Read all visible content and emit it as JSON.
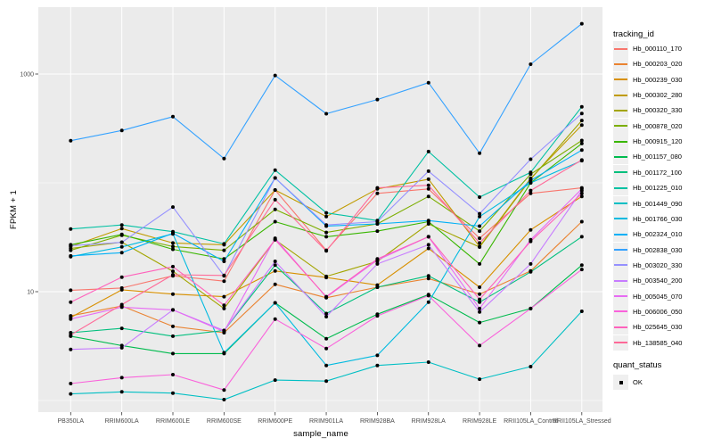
{
  "figure": {
    "y_axis_title": "FPKM + 1",
    "x_axis_title": "sample_name",
    "y_tick_labels": [
      "1000",
      "10"
    ],
    "panel_background": "#EBEBEB",
    "gridline_color": "#FFFFFF",
    "tick_color": "#333333",
    "tick_label_color": "#4D4D4D",
    "point_color": "#000000"
  },
  "legend": {
    "tracking_title": "tracking_id",
    "quant_title": "quant_status",
    "quant_ok_label": "OK"
  },
  "chart_data": {
    "type": "line",
    "title": "",
    "xlabel": "sample_name",
    "ylabel": "FPKM + 1",
    "y_scale": "log10",
    "y_major_gridlines": [
      10,
      1000
    ],
    "y_minor_gridlines": [
      1,
      100
    ],
    "ylim": [
      0.8,
      4100
    ],
    "grid": true,
    "legend_position": "right",
    "legend_title": "tracking_id",
    "quant_status": {
      "title": "quant_status",
      "items": [
        "OK"
      ],
      "marker": "black-point"
    },
    "categories": [
      "PB350LA",
      "RRIM600LA",
      "RRIM600LE",
      "RRIM600SE",
      "RRIM600PE",
      "RRIM901LA",
      "RRIM928BA",
      "RRIM928LA",
      "RRIM928LE",
      "RRII105LA_Control",
      "RRII105LA_Stressed"
    ],
    "series": [
      {
        "name": "Hb_000110_170",
        "color": "#F8766D",
        "values": [
          10.3,
          10.8,
          14,
          12.5,
          86,
          24,
          80,
          88,
          31,
          80,
          90
        ]
      },
      {
        "name": "Hb_000203_020",
        "color": "#EA8331",
        "values": [
          6.0,
          7.4,
          4.8,
          4.2,
          11.7,
          8.8,
          11,
          13.2,
          9.5,
          15.5,
          44
        ]
      },
      {
        "name": "Hb_000239_030",
        "color": "#D89000",
        "values": [
          5.8,
          10.4,
          9.5,
          9.0,
          15.5,
          13.5,
          11.5,
          25,
          11,
          37,
          75
        ]
      },
      {
        "name": "Hb_000302_280",
        "color": "#C09B00",
        "values": [
          26,
          38,
          28,
          27,
          86,
          49,
          88,
          108,
          26,
          110,
          340
        ]
      },
      {
        "name": "Hb_000320_330",
        "color": "#A3A500",
        "values": [
          25,
          28.5,
          15.4,
          7.0,
          30,
          13.8,
          19,
          42,
          25.7,
          108,
          374
        ]
      },
      {
        "name": "Hb_000878_020",
        "color": "#7CAE00",
        "values": [
          24,
          33,
          26,
          24,
          57,
          35,
          42,
          75,
          36,
          120,
          245
        ]
      },
      {
        "name": "Hb_000915_120",
        "color": "#39B600",
        "values": [
          27,
          33.6,
          24.5,
          20,
          44,
          32,
          36,
          44,
          18,
          100,
          230
        ]
      },
      {
        "name": "Hb_001157_080",
        "color": "#00BB4E",
        "values": [
          3.9,
          3.2,
          2.7,
          2.7,
          7.9,
          3.7,
          6.2,
          9.4,
          5.2,
          7.0,
          17.5
        ]
      },
      {
        "name": "Hb_001172_100",
        "color": "#00BF7D",
        "values": [
          4.2,
          4.6,
          3.9,
          4.4,
          17.5,
          6.3,
          11,
          14,
          8.0,
          15.2,
          32
        ]
      },
      {
        "name": "Hb_001225_010",
        "color": "#00C1A3",
        "values": [
          37.7,
          41,
          35.6,
          27.5,
          131,
          53,
          45,
          194,
          74,
          125,
          500
        ]
      },
      {
        "name": "Hb_001449_090",
        "color": "#00BFC4",
        "values": [
          1.15,
          1.2,
          1.17,
          1.02,
          1.54,
          1.51,
          2.1,
          2.25,
          1.57,
          2.05,
          6.6
        ]
      },
      {
        "name": "Hb_001766_030",
        "color": "#00BAE0",
        "values": [
          21,
          25.8,
          34,
          2.75,
          7.9,
          2.1,
          2.6,
          8.0,
          49,
          100,
          160
        ]
      },
      {
        "name": "Hb_002324_010",
        "color": "#00B0F6",
        "values": [
          21.3,
          22.8,
          34.4,
          19,
          111,
          40,
          42,
          45,
          40,
          105,
          200
        ]
      },
      {
        "name": "Hb_002838_030",
        "color": "#35A2FF",
        "values": [
          244,
          303,
          406,
          167,
          970,
          432,
          583,
          833,
          187,
          1230,
          2900
        ]
      },
      {
        "name": "Hb_003020_330",
        "color": "#9590FF",
        "values": [
          26.5,
          28.4,
          60,
          14,
          111,
          41,
          44,
          128,
          52,
          165,
          433
        ]
      },
      {
        "name": "Hb_003540_200",
        "color": "#C77CFF",
        "values": [
          2.95,
          3.05,
          6.8,
          4.4,
          19,
          5.9,
          18,
          27,
          6.5,
          18,
          85
        ]
      },
      {
        "name": "Hb_005045_070",
        "color": "#E76BF3",
        "values": [
          5.6,
          7.2,
          6.8,
          4.3,
          31,
          8.9,
          19.5,
          32,
          7.0,
          30,
          88
        ]
      },
      {
        "name": "Hb_006006_050",
        "color": "#FA62DB",
        "values": [
          1.43,
          1.62,
          1.73,
          1.25,
          5.6,
          3.0,
          6.0,
          9.2,
          3.2,
          7.0,
          16
        ]
      },
      {
        "name": "Hb_025645_030",
        "color": "#FF62BC",
        "values": [
          8.0,
          13.6,
          17,
          7.5,
          30,
          9.0,
          20,
          32,
          8.5,
          29,
          80
        ]
      },
      {
        "name": "Hb_138585_040",
        "color": "#FF6A98",
        "values": [
          4.0,
          7.6,
          14.3,
          14.1,
          70,
          23.7,
          90,
          95,
          28,
          85,
          162
        ]
      }
    ]
  }
}
